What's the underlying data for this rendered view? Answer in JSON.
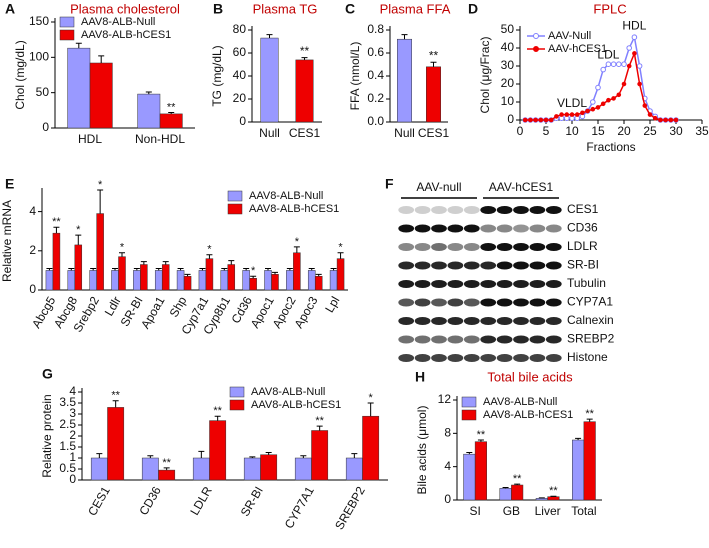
{
  "chart_data": [
    {
      "type": "bar",
      "panel": "A",
      "title": "Plasma cholesterol",
      "ylabel": "Chol (mg/dL)",
      "categories": [
        "HDL",
        "Non-HDL"
      ],
      "series": [
        {
          "name": "AAV8-ALB-Null",
          "color": "#9999ff",
          "values": [
            113,
            48
          ],
          "errors": [
            7,
            3
          ],
          "sig": [
            null,
            null
          ]
        },
        {
          "name": "AAV8-ALB-hCES1",
          "color": "#ee0000",
          "values": [
            92,
            20
          ],
          "errors": [
            10,
            2
          ],
          "sig": [
            null,
            "**"
          ]
        }
      ],
      "ylim": [
        0,
        150
      ],
      "yticks": [
        0,
        50,
        100,
        150
      ],
      "legend": "upper left"
    },
    {
      "type": "bar",
      "panel": "B",
      "title": "Plasma TG",
      "ylabel": "TG (mg/dL)",
      "categories": [
        "Null",
        "CES1"
      ],
      "values": [
        73,
        54
      ],
      "errors": [
        3,
        2
      ],
      "colors": [
        "#9999ff",
        "#ee0000"
      ],
      "sig": [
        null,
        "**"
      ],
      "ylim": [
        0,
        80
      ],
      "yticks": [
        0,
        20,
        40,
        60,
        80
      ]
    },
    {
      "type": "bar",
      "panel": "C",
      "title": "Plasma FFA",
      "ylabel": "FFA (nmol/L)",
      "categories": [
        "Null",
        "CES1"
      ],
      "values": [
        0.72,
        0.48
      ],
      "errors": [
        0.04,
        0.04
      ],
      "colors": [
        "#9999ff",
        "#ee0000"
      ],
      "sig": [
        null,
        "**"
      ],
      "ylim": [
        0,
        0.8
      ],
      "yticks": [
        {
          "value": 0,
          "label": "0.0"
        },
        0.2,
        0.4,
        0.6,
        0.8
      ]
    },
    {
      "type": "line",
      "panel": "D",
      "title": "FPLC",
      "ylabel": "Chol (μg/Frac)",
      "xlabel": "Fractions",
      "x": [
        1,
        2,
        3,
        4,
        5,
        6,
        7,
        8,
        9,
        10,
        11,
        12,
        13,
        14,
        15,
        16,
        17,
        18,
        19,
        20,
        21,
        22,
        23,
        24,
        25,
        26,
        27,
        28,
        29,
        30
      ],
      "series": [
        {
          "name": "AAV-Null",
          "color": "#8080ff",
          "values": [
            0,
            0,
            0,
            0,
            0,
            0,
            1,
            1,
            1,
            1,
            1,
            2,
            5,
            10,
            18,
            28,
            31,
            31,
            31,
            31,
            40,
            46,
            30,
            12,
            5,
            2,
            0,
            0,
            0,
            0
          ]
        },
        {
          "name": "AAV-hCES1",
          "color": "#ee0000",
          "values": [
            0,
            0,
            0,
            0,
            0,
            0,
            2,
            3,
            3,
            3,
            3,
            4,
            5,
            6,
            7,
            9,
            11,
            12,
            14,
            20,
            30,
            37,
            20,
            8,
            3,
            1,
            0,
            0,
            0,
            0
          ]
        }
      ],
      "annotations": [
        "VLDL",
        "LDL",
        "HDL"
      ],
      "xlim": [
        0,
        35
      ],
      "xticks": [
        0,
        5,
        10,
        15,
        20,
        25,
        30,
        35
      ],
      "ylim": [
        0,
        50
      ],
      "yticks": [
        0,
        10,
        20,
        30,
        40,
        50
      ],
      "legend": "upper left"
    },
    {
      "type": "bar",
      "panel": "E",
      "ylabel": "Relative mRNA",
      "categories": [
        "Abcg5",
        "Abcg8",
        "Srebp2",
        "Ldlr",
        "SR-BI",
        "Apoa1",
        "Shp",
        "Cyp7a1",
        "Cyp8b1",
        "Cd36",
        "Apoc1",
        "Apoc2",
        "Apoc3",
        "Lpl"
      ],
      "series": [
        {
          "name": "AAV8-ALB-Null",
          "color": "#9999ff",
          "values": [
            1,
            1,
            1,
            1,
            1,
            1,
            1,
            1,
            1,
            1,
            1,
            1,
            1,
            1
          ],
          "errors": [
            0.1,
            0.1,
            0.1,
            0.1,
            0.1,
            0.1,
            0.1,
            0.1,
            0.1,
            0.1,
            0.1,
            0.1,
            0.1,
            0.1
          ],
          "sig": [
            null,
            null,
            null,
            null,
            null,
            null,
            null,
            null,
            null,
            null,
            null,
            null,
            null,
            null
          ]
        },
        {
          "name": "AAV8-ALB-hCES1",
          "color": "#ee0000",
          "values": [
            2.9,
            2.3,
            3.9,
            1.7,
            1.3,
            1.3,
            0.7,
            1.6,
            1.3,
            0.6,
            0.8,
            1.9,
            0.7,
            1.6
          ],
          "errors": [
            0.3,
            0.5,
            1.2,
            0.2,
            0.15,
            0.15,
            0.1,
            0.2,
            0.2,
            0.1,
            0.1,
            0.3,
            0.1,
            0.3
          ],
          "sig": [
            "**",
            "*",
            "*",
            "*",
            null,
            null,
            null,
            "*",
            null,
            "*",
            null,
            "*",
            null,
            "*"
          ]
        }
      ],
      "ylim": [
        0,
        5
      ],
      "yticks": [
        0,
        2,
        4
      ],
      "legend": "upper right"
    },
    {
      "type": "bar",
      "panel": "G",
      "ylabel": "Relative protein",
      "categories": [
        "CES1",
        "CD36",
        "LDLR",
        "SR-BI",
        "CYP7A1",
        "SREBP2"
      ],
      "series": [
        {
          "name": "AAV8-ALB-Null",
          "color": "#9999ff",
          "values": [
            1,
            1,
            1,
            1,
            1,
            1
          ],
          "errors": [
            0.2,
            0.1,
            0.3,
            0.05,
            0.1,
            0.2
          ],
          "sig": [
            null,
            null,
            null,
            null,
            null,
            null
          ]
        },
        {
          "name": "AAV8-ALB-hCES1",
          "color": "#ee0000",
          "values": [
            3.3,
            0.45,
            2.7,
            1.15,
            2.25,
            2.9
          ],
          "errors": [
            0.3,
            0.1,
            0.2,
            0.1,
            0.2,
            0.6
          ],
          "sig": [
            "**",
            "**",
            "**",
            null,
            "**",
            "*"
          ]
        }
      ],
      "ylim": [
        0,
        4
      ],
      "yticks": [
        0,
        0.5,
        1,
        1.5,
        2,
        2.5,
        3,
        3.5,
        4
      ],
      "legend": "upper right"
    },
    {
      "type": "bar",
      "panel": "H",
      "title": "Total bile acids",
      "ylabel": "Bile acids (μmol)",
      "categories": [
        "SI",
        "GB",
        "Liver",
        "Total"
      ],
      "series": [
        {
          "name": "AAV8-ALB-Null",
          "color": "#9999ff",
          "values": [
            5.5,
            1.4,
            0.2,
            7.2
          ],
          "errors": [
            0.2,
            0.1,
            0.05,
            0.2
          ],
          "sig": [
            null,
            null,
            null,
            null
          ]
        },
        {
          "name": "AAV8-ALB-hCES1",
          "color": "#ee0000",
          "values": [
            7.0,
            1.8,
            0.4,
            9.4
          ],
          "errors": [
            0.2,
            0.1,
            0.05,
            0.3
          ],
          "sig": [
            "**",
            "**",
            "**",
            "**"
          ]
        }
      ],
      "ylim": [
        0,
        12
      ],
      "yticks": [
        0,
        4,
        8,
        12
      ],
      "legend": "upper left"
    }
  ],
  "blot": {
    "panel": "F",
    "groups": [
      "AAV-null",
      "AAV-hCES1"
    ],
    "proteins": [
      "CES1",
      "CD36",
      "LDLR",
      "SR-BI",
      "Tubulin",
      "CYP7A1",
      "Calnexin",
      "SREBP2",
      "Histone"
    ]
  }
}
